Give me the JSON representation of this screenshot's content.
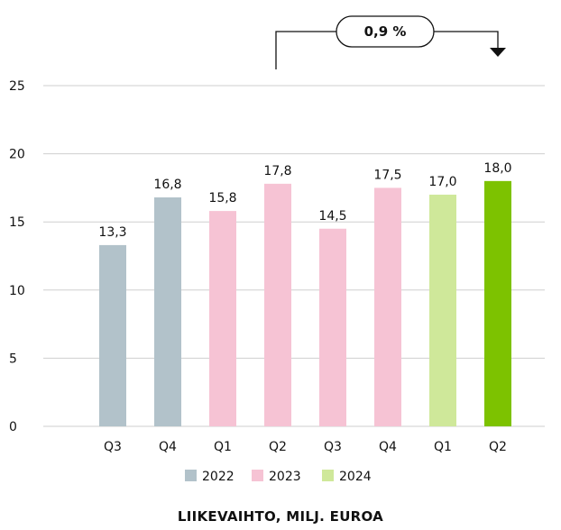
{
  "chart_data": {
    "type": "bar",
    "title": "LIIKEVAIHTO, MILJ. EUROA",
    "categories": [
      "Q3",
      "Q4",
      "Q1",
      "Q2",
      "Q3",
      "Q4",
      "Q1",
      "Q2"
    ],
    "values": [
      13.3,
      16.8,
      15.8,
      17.8,
      14.5,
      17.5,
      17.0,
      18.0
    ],
    "data_labels": [
      "13,3",
      "16,8",
      "15,8",
      "17,8",
      "14,5",
      "17,5",
      "17,0",
      "18,0"
    ],
    "year_groups": [
      "2022",
      "2022",
      "2023",
      "2023",
      "2023",
      "2023",
      "2024",
      "2024"
    ],
    "legend": [
      {
        "name": "2022",
        "color": "#b2c2ca"
      },
      {
        "name": "2023",
        "color": "#f6c3d4"
      },
      {
        "name": "2024",
        "color": "#cfe89a"
      }
    ],
    "highlight_color": "#7dc200",
    "highlight_index": 7,
    "ylim": [
      0,
      25
    ],
    "yticks": [
      0,
      5,
      10,
      15,
      20,
      25
    ],
    "grid": true,
    "legend_position": "bottom",
    "callout": {
      "text": "0,9 %",
      "from_index": 3,
      "to_index": 7
    }
  }
}
